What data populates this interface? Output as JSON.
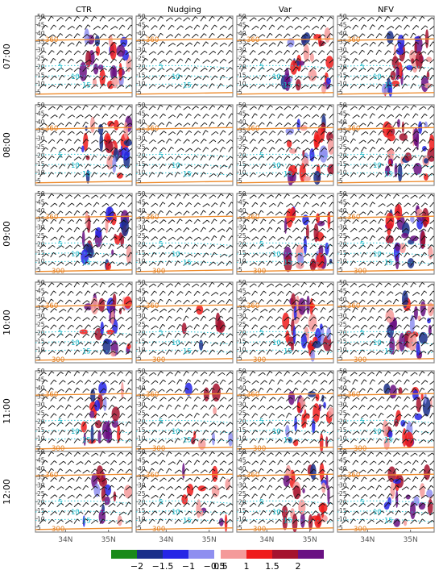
{
  "chart_data": {
    "type": "heatmap",
    "description_columns": [
      "CTR",
      "Nudging",
      "Var",
      "NFV"
    ],
    "rows": [
      "07:00",
      "08:00",
      "09:00",
      "10:00",
      "11:00",
      "12:00"
    ],
    "x_ticks": [
      "34N",
      "35N"
    ],
    "x_tick_values": [
      34,
      35
    ],
    "x_range": [
      33.3,
      35.55
    ],
    "y_ticks": [
      "5",
      "10",
      "15",
      "20",
      "25",
      "30",
      "35",
      "40",
      "45",
      "50"
    ],
    "y_tick_values": [
      5,
      10,
      15,
      20,
      25,
      30,
      35,
      40,
      45,
      50
    ],
    "y_range": [
      2,
      50
    ],
    "contour_labels": {
      "cyan": [
        "5",
        "10",
        "15"
      ],
      "orange": [
        "360",
        "300"
      ]
    },
    "colorbar": {
      "tick_labels": [
        "−2",
        "−1.5",
        "−1",
        "−0.5",
        "0.5",
        "1",
        "1.5",
        "2"
      ],
      "levels": [
        -2,
        -1.5,
        -1,
        -0.5,
        0.5,
        1,
        1.5,
        2
      ],
      "colors": [
        "#1a8a1a",
        "#1a2f8a",
        "#2626e6",
        "#8f8ff0",
        "#f49a9a",
        "#ef1b1b",
        "#a5122e",
        "#6a1183"
      ]
    },
    "intensity": [
      [
        0.75,
        0.0,
        0.8,
        0.85
      ],
      [
        0.85,
        0.0,
        0.75,
        0.9
      ],
      [
        0.8,
        0.0,
        0.75,
        0.9
      ],
      [
        0.7,
        0.2,
        0.85,
        0.75
      ],
      [
        0.65,
        0.25,
        0.65,
        0.65
      ],
      [
        0.45,
        0.35,
        0.75,
        0.55
      ]
    ]
  }
}
